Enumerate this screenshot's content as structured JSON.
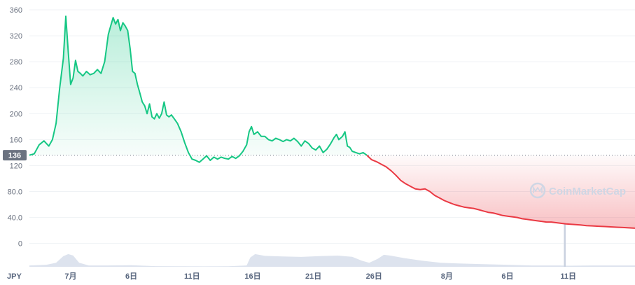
{
  "chart_data": {
    "type": "line",
    "currency_label": "JPY",
    "reference_value": 136,
    "reference_label": "136",
    "ylim": [
      -36,
      360
    ],
    "y_ticks": [
      {
        "value": 360,
        "label": "360"
      },
      {
        "value": 320,
        "label": "320"
      },
      {
        "value": 280,
        "label": "280"
      },
      {
        "value": 240,
        "label": "240"
      },
      {
        "value": 200,
        "label": "200"
      },
      {
        "value": 160,
        "label": "160"
      },
      {
        "value": 120,
        "label": "120"
      },
      {
        "value": 80,
        "label": "80.0"
      },
      {
        "value": 40,
        "label": "40.0"
      },
      {
        "value": 0,
        "label": "0"
      }
    ],
    "x_ticks": [
      {
        "day": 0,
        "label": "7月"
      },
      {
        "day": 5,
        "label": "6日"
      },
      {
        "day": 10,
        "label": "11日"
      },
      {
        "day": 15,
        "label": "16日"
      },
      {
        "day": 20,
        "label": "21日"
      },
      {
        "day": 25,
        "label": "26日"
      },
      {
        "day": 31,
        "label": "8月"
      },
      {
        "day": 36,
        "label": "6日"
      },
      {
        "day": 41,
        "label": "11日"
      }
    ],
    "xlim": [
      -3.4,
      46.5
    ],
    "series": [
      {
        "points": [
          [
            -3.4,
            136
          ],
          [
            -3.0,
            138
          ],
          [
            -2.6,
            152
          ],
          [
            -2.2,
            158
          ],
          [
            -1.8,
            150
          ],
          [
            -1.5,
            160
          ],
          [
            -1.2,
            185
          ],
          [
            -0.9,
            240
          ],
          [
            -0.6,
            285
          ],
          [
            -0.4,
            350
          ],
          [
            -0.2,
            295
          ],
          [
            0.0,
            245
          ],
          [
            0.2,
            255
          ],
          [
            0.4,
            282
          ],
          [
            0.6,
            265
          ],
          [
            0.8,
            262
          ],
          [
            1.0,
            258
          ],
          [
            1.3,
            265
          ],
          [
            1.6,
            260
          ],
          [
            1.9,
            262
          ],
          [
            2.2,
            268
          ],
          [
            2.5,
            262
          ],
          [
            2.8,
            280
          ],
          [
            3.1,
            322
          ],
          [
            3.3,
            335
          ],
          [
            3.5,
            348
          ],
          [
            3.7,
            338
          ],
          [
            3.9,
            345
          ],
          [
            4.1,
            328
          ],
          [
            4.3,
            340
          ],
          [
            4.5,
            335
          ],
          [
            4.7,
            328
          ],
          [
            4.9,
            300
          ],
          [
            5.1,
            265
          ],
          [
            5.3,
            262
          ],
          [
            5.5,
            245
          ],
          [
            5.7,
            232
          ],
          [
            5.9,
            218
          ],
          [
            6.1,
            212
          ],
          [
            6.3,
            200
          ],
          [
            6.5,
            215
          ],
          [
            6.7,
            195
          ],
          [
            6.9,
            192
          ],
          [
            7.1,
            200
          ],
          [
            7.3,
            193
          ],
          [
            7.5,
            200
          ],
          [
            7.7,
            218
          ],
          [
            7.9,
            198
          ],
          [
            8.1,
            195
          ],
          [
            8.3,
            198
          ],
          [
            8.5,
            193
          ],
          [
            8.8,
            185
          ],
          [
            9.1,
            172
          ],
          [
            9.4,
            155
          ],
          [
            9.7,
            140
          ],
          [
            10.0,
            130
          ],
          [
            10.3,
            128
          ],
          [
            10.6,
            125
          ],
          [
            10.9,
            130
          ],
          [
            11.2,
            135
          ],
          [
            11.5,
            128
          ],
          [
            11.8,
            133
          ],
          [
            12.1,
            130
          ],
          [
            12.4,
            133
          ],
          [
            12.7,
            131
          ],
          [
            13.0,
            130
          ],
          [
            13.3,
            134
          ],
          [
            13.6,
            131
          ],
          [
            13.9,
            135
          ],
          [
            14.2,
            142
          ],
          [
            14.5,
            152
          ],
          [
            14.7,
            172
          ],
          [
            14.9,
            180
          ],
          [
            15.1,
            168
          ],
          [
            15.4,
            172
          ],
          [
            15.7,
            165
          ],
          [
            16.0,
            165
          ],
          [
            16.3,
            160
          ],
          [
            16.6,
            158
          ],
          [
            16.9,
            162
          ],
          [
            17.2,
            160
          ],
          [
            17.5,
            157
          ],
          [
            17.8,
            160
          ],
          [
            18.1,
            158
          ],
          [
            18.4,
            162
          ],
          [
            18.7,
            157
          ],
          [
            19.0,
            150
          ],
          [
            19.3,
            158
          ],
          [
            19.6,
            154
          ],
          [
            19.9,
            147
          ],
          [
            20.2,
            144
          ],
          [
            20.5,
            150
          ],
          [
            20.8,
            140
          ],
          [
            21.1,
            145
          ],
          [
            21.4,
            153
          ],
          [
            21.7,
            163
          ],
          [
            21.9,
            168
          ],
          [
            22.1,
            160
          ],
          [
            22.4,
            165
          ],
          [
            22.6,
            172
          ],
          [
            22.8,
            150
          ],
          [
            23.0,
            148
          ],
          [
            23.2,
            142
          ],
          [
            23.5,
            140
          ],
          [
            23.8,
            138
          ],
          [
            24.1,
            140
          ],
          [
            24.4,
            136
          ]
        ]
      },
      {
        "points": [
          [
            24.4,
            136
          ],
          [
            24.8,
            129
          ],
          [
            25.2,
            126
          ],
          [
            25.6,
            122
          ],
          [
            26.0,
            118
          ],
          [
            26.4,
            112
          ],
          [
            26.8,
            105
          ],
          [
            27.2,
            97
          ],
          [
            27.6,
            92
          ],
          [
            28.0,
            88
          ],
          [
            28.4,
            84
          ],
          [
            28.8,
            83
          ],
          [
            29.2,
            84
          ],
          [
            29.6,
            80
          ],
          [
            30.0,
            74
          ],
          [
            30.4,
            70
          ],
          [
            30.8,
            66
          ],
          [
            31.2,
            63
          ],
          [
            31.6,
            60
          ],
          [
            32.0,
            58
          ],
          [
            32.4,
            56
          ],
          [
            32.8,
            55
          ],
          [
            33.2,
            54
          ],
          [
            33.6,
            52
          ],
          [
            34.0,
            50
          ],
          [
            34.4,
            48
          ],
          [
            34.8,
            47
          ],
          [
            35.2,
            45
          ],
          [
            35.6,
            43
          ],
          [
            36.0,
            42
          ],
          [
            36.4,
            41
          ],
          [
            36.8,
            40
          ],
          [
            37.2,
            38
          ],
          [
            37.6,
            37
          ],
          [
            38.0,
            36
          ],
          [
            38.4,
            35
          ],
          [
            38.8,
            34
          ],
          [
            39.2,
            33
          ],
          [
            39.6,
            33
          ],
          [
            40.0,
            32
          ],
          [
            40.4,
            31
          ],
          [
            40.8,
            30
          ],
          [
            41.2,
            29.5
          ],
          [
            41.6,
            29
          ],
          [
            42.0,
            28.5
          ],
          [
            42.5,
            27.5
          ],
          [
            43.0,
            27
          ],
          [
            43.5,
            26.5
          ],
          [
            44.0,
            26
          ],
          [
            44.5,
            25.5
          ],
          [
            45.0,
            25
          ],
          [
            45.5,
            24.5
          ],
          [
            46.0,
            24
          ],
          [
            46.5,
            23.5
          ]
        ]
      }
    ],
    "volume": [
      [
        -3.4,
        0.1
      ],
      [
        -2.0,
        0.15
      ],
      [
        -1.2,
        0.3
      ],
      [
        -0.6,
        0.8
      ],
      [
        -0.2,
        0.95
      ],
      [
        0.2,
        0.85
      ],
      [
        0.7,
        0.3
      ],
      [
        1.5,
        0.1
      ],
      [
        3.0,
        0.1
      ],
      [
        5.0,
        0.12
      ],
      [
        7.0,
        0.05
      ],
      [
        9.0,
        0.04
      ],
      [
        11.0,
        0.03
      ],
      [
        13.0,
        0.04
      ],
      [
        14.5,
        0.1
      ],
      [
        14.8,
        0.7
      ],
      [
        15.2,
        0.95
      ],
      [
        16.0,
        0.82
      ],
      [
        17.5,
        0.78
      ],
      [
        19.0,
        0.74
      ],
      [
        20.5,
        0.8
      ],
      [
        22.0,
        0.84
      ],
      [
        23.2,
        0.75
      ],
      [
        24.0,
        0.45
      ],
      [
        24.6,
        0.3
      ],
      [
        25.3,
        0.6
      ],
      [
        25.8,
        0.9
      ],
      [
        26.3,
        0.85
      ],
      [
        27.5,
        0.65
      ],
      [
        29.0,
        0.45
      ],
      [
        30.5,
        0.3
      ],
      [
        32.0,
        0.25
      ],
      [
        34.0,
        0.2
      ],
      [
        36.0,
        0.15
      ],
      [
        38.0,
        0.1
      ],
      [
        39.5,
        0.1
      ],
      [
        40.3,
        0.1
      ],
      [
        41.0,
        0.08
      ],
      [
        43.0,
        0.1
      ],
      [
        46.5,
        0.1
      ]
    ],
    "volume_spike": {
      "day": 40.7,
      "level": 3.2
    },
    "colors": {
      "up": "#16c784",
      "down": "#ea3943",
      "volume": "#dde3ee",
      "grid": "#eff2f5",
      "badge": "#6b7280"
    },
    "watermark": "CoinMarketCap"
  }
}
